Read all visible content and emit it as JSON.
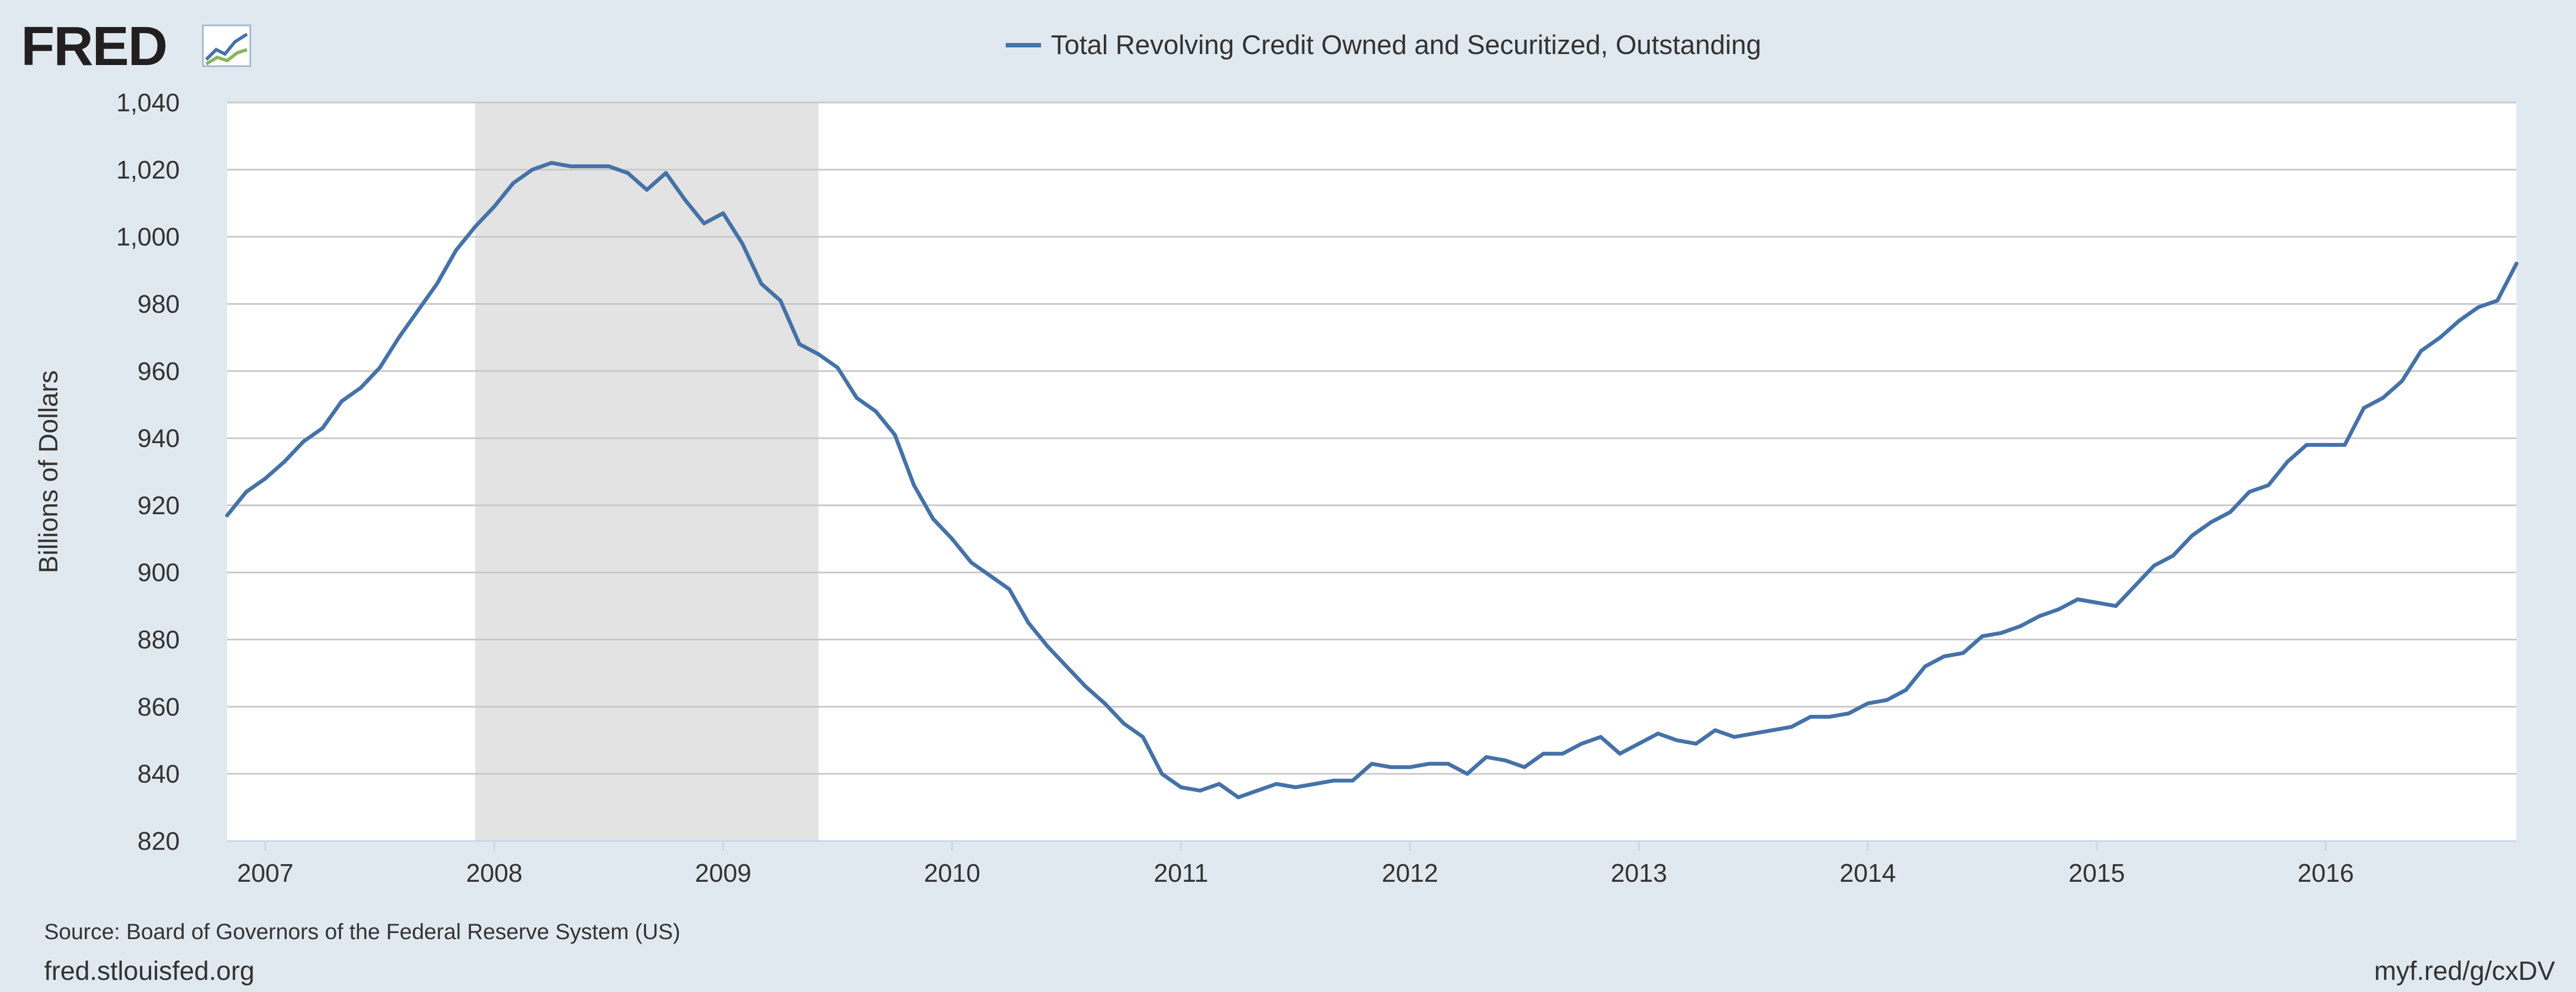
{
  "logo": {
    "text": "FRED"
  },
  "footer": {
    "source": "Source: Board of Governors of the Federal Reserve System (US)",
    "site": "fred.stlouisfed.org",
    "short_link": "myf.red/g/cxDV"
  },
  "colors": {
    "background": "#e1e9f0",
    "plot_background": "#ffffff",
    "series": "#4572a7",
    "recession": "#e3e3e3",
    "grid": "#c8c8c8"
  },
  "chart_data": {
    "type": "line",
    "title": "",
    "xlabel": "",
    "ylabel": "Billions of Dollars",
    "ylim": [
      820,
      1040
    ],
    "y_ticks": [
      820,
      840,
      860,
      880,
      900,
      920,
      940,
      960,
      980,
      1000,
      1020,
      1040
    ],
    "y_tick_labels": [
      "820",
      "840",
      "860",
      "880",
      "900",
      "920",
      "940",
      "960",
      "980",
      "1,000",
      "1,020",
      "1,040"
    ],
    "x_start": "2006-11",
    "x_end": "2016-11",
    "x_ticks": [
      "2007-01",
      "2008-01",
      "2009-01",
      "2010-01",
      "2011-01",
      "2012-01",
      "2013-01",
      "2014-01",
      "2015-01",
      "2016-01"
    ],
    "x_tick_labels": [
      "2007",
      "2008",
      "2009",
      "2010",
      "2011",
      "2012",
      "2013",
      "2014",
      "2015",
      "2016"
    ],
    "grid": true,
    "legend_position": "top-center",
    "recession": {
      "start": "2007-12",
      "end": "2009-06"
    },
    "series": [
      {
        "name": "Total Revolving Credit Owned and Securitized, Outstanding",
        "x": [
          "2006-11",
          "2006-12",
          "2007-01",
          "2007-02",
          "2007-03",
          "2007-04",
          "2007-05",
          "2007-06",
          "2007-07",
          "2007-08",
          "2007-09",
          "2007-10",
          "2007-11",
          "2007-12",
          "2008-01",
          "2008-02",
          "2008-03",
          "2008-04",
          "2008-05",
          "2008-06",
          "2008-07",
          "2008-08",
          "2008-09",
          "2008-10",
          "2008-11",
          "2008-12",
          "2009-01",
          "2009-02",
          "2009-03",
          "2009-04",
          "2009-05",
          "2009-06",
          "2009-07",
          "2009-08",
          "2009-09",
          "2009-10",
          "2009-11",
          "2009-12",
          "2010-01",
          "2010-02",
          "2010-03",
          "2010-04",
          "2010-05",
          "2010-06",
          "2010-07",
          "2010-08",
          "2010-09",
          "2010-10",
          "2010-11",
          "2010-12",
          "2011-01",
          "2011-02",
          "2011-03",
          "2011-04",
          "2011-05",
          "2011-06",
          "2011-07",
          "2011-08",
          "2011-09",
          "2011-10",
          "2011-11",
          "2011-12",
          "2012-01",
          "2012-02",
          "2012-03",
          "2012-04",
          "2012-05",
          "2012-06",
          "2012-07",
          "2012-08",
          "2012-09",
          "2012-10",
          "2012-11",
          "2012-12",
          "2013-01",
          "2013-02",
          "2013-03",
          "2013-04",
          "2013-05",
          "2013-06",
          "2013-07",
          "2013-08",
          "2013-09",
          "2013-10",
          "2013-11",
          "2013-12",
          "2014-01",
          "2014-02",
          "2014-03",
          "2014-04",
          "2014-05",
          "2014-06",
          "2014-07",
          "2014-08",
          "2014-09",
          "2014-10",
          "2014-11",
          "2014-12",
          "2015-01",
          "2015-02",
          "2015-03",
          "2015-04",
          "2015-05",
          "2015-06",
          "2015-07",
          "2015-08",
          "2015-09",
          "2015-10",
          "2015-11",
          "2015-12",
          "2016-01",
          "2016-02",
          "2016-03",
          "2016-04",
          "2016-05",
          "2016-06",
          "2016-07",
          "2016-08",
          "2016-09",
          "2016-10",
          "2016-11"
        ],
        "values": [
          917,
          924,
          928,
          933,
          939,
          943,
          951,
          955,
          961,
          970,
          978,
          986,
          996,
          1003,
          1009,
          1016,
          1020,
          1022,
          1021,
          1021,
          1021,
          1019,
          1014,
          1019,
          1011,
          1004,
          1007,
          998,
          986,
          981,
          968,
          965,
          961,
          952,
          948,
          941,
          926,
          916,
          910,
          903,
          899,
          895,
          885,
          878,
          872,
          866,
          861,
          855,
          851,
          840,
          836,
          835,
          837,
          833,
          835,
          837,
          836,
          837,
          838,
          838,
          843,
          842,
          842,
          843,
          843,
          840,
          845,
          844,
          842,
          846,
          846,
          849,
          851,
          846,
          849,
          852,
          850,
          849,
          853,
          851,
          852,
          853,
          854,
          857,
          857,
          858,
          861,
          862,
          865,
          872,
          875,
          876,
          881,
          882,
          884,
          887,
          889,
          892,
          891,
          890,
          896,
          902,
          905,
          911,
          915,
          918,
          924,
          926,
          933,
          938,
          938,
          938,
          949,
          952,
          957,
          966,
          970,
          975,
          979,
          981,
          992
        ]
      }
    ]
  }
}
